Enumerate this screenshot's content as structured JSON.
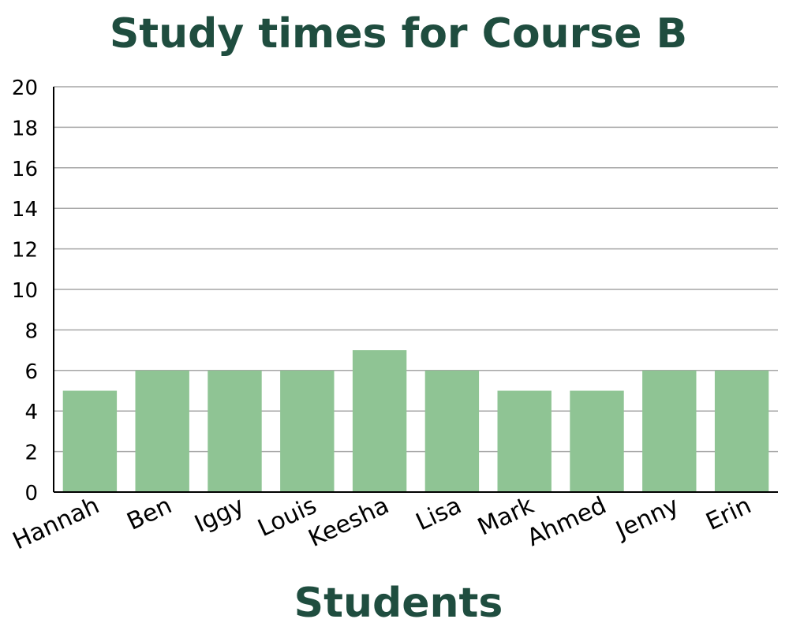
{
  "chart_data": {
    "type": "bar",
    "title": "Study times for Course B",
    "xlabel": "Students",
    "ylabel": "",
    "categories": [
      "Hannah",
      "Ben",
      "Iggy",
      "Louis",
      "Keesha",
      "Lisa",
      "Mark",
      "Ahmed",
      "Jenny",
      "Erin"
    ],
    "values": [
      5,
      6,
      6,
      6,
      7,
      6,
      5,
      5,
      6,
      6
    ],
    "ylim": [
      0,
      20
    ],
    "yticks": [
      0,
      2,
      4,
      6,
      8,
      10,
      12,
      14,
      16,
      18,
      20
    ],
    "grid": true,
    "legend": "none",
    "colors": {
      "bar": "#8fc494",
      "title": "#1f4d3f",
      "grid": "#a6a6a6",
      "axis": "#000000"
    }
  }
}
